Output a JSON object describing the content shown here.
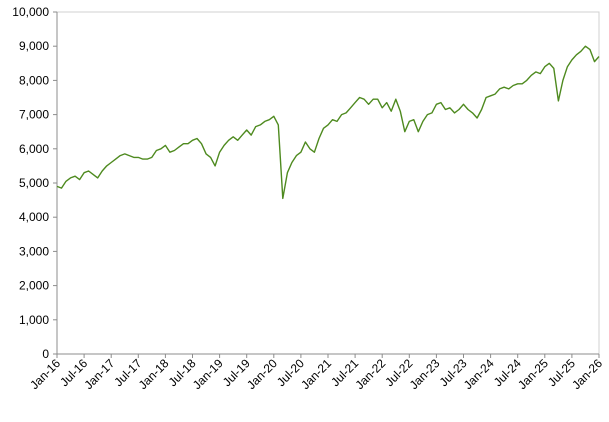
{
  "chart_data": {
    "type": "line",
    "title": "",
    "xlabel": "",
    "ylabel": "",
    "ylim": [
      0,
      10000
    ],
    "yticks": [
      0,
      1000,
      2000,
      3000,
      4000,
      5000,
      6000,
      7000,
      8000,
      9000,
      10000
    ],
    "ytick_labels": [
      "0",
      "1,000",
      "2,000",
      "3,000",
      "4,000",
      "5,000",
      "6,000",
      "7,000",
      "8,000",
      "9,000",
      "10,000"
    ],
    "xlim": [
      "2016-01",
      "2026-01"
    ],
    "xticks": [
      "2016-01",
      "2016-07",
      "2017-01",
      "2017-07",
      "2018-01",
      "2018-07",
      "2019-01",
      "2019-07",
      "2020-01",
      "2020-07",
      "2021-01",
      "2021-07",
      "2022-01",
      "2022-07",
      "2023-01",
      "2023-07",
      "2024-01",
      "2024-07",
      "2025-01",
      "2025-07",
      "2026-01"
    ],
    "xtick_labels": [
      "Jan-16",
      "Jul-16",
      "Jan-17",
      "Jul-17",
      "Jan-18",
      "Jul-18",
      "Jan-19",
      "Jul-19",
      "Jan-20",
      "Jul-20",
      "Jan-21",
      "Jul-21",
      "Jan-22",
      "Jul-22",
      "Jan-23",
      "Jul-23",
      "Jan-24",
      "Jul-24",
      "Jan-25",
      "Jul-25",
      "Jan-26"
    ],
    "grid": false,
    "line_color": "#4e8a1f",
    "series": [
      {
        "x": [
          "2016-01",
          "2016-02",
          "2016-03",
          "2016-04",
          "2016-05",
          "2016-06",
          "2016-07",
          "2016-08",
          "2016-09",
          "2016-10",
          "2016-11",
          "2016-12",
          "2017-01",
          "2017-02",
          "2017-03",
          "2017-04",
          "2017-05",
          "2017-06",
          "2017-07",
          "2017-08",
          "2017-09",
          "2017-10",
          "2017-11",
          "2017-12",
          "2018-01",
          "2018-02",
          "2018-03",
          "2018-04",
          "2018-05",
          "2018-06",
          "2018-07",
          "2018-08",
          "2018-09",
          "2018-10",
          "2018-11",
          "2018-12",
          "2019-01",
          "2019-02",
          "2019-03",
          "2019-04",
          "2019-05",
          "2019-06",
          "2019-07",
          "2019-08",
          "2019-09",
          "2019-10",
          "2019-11",
          "2019-12",
          "2020-01",
          "2020-02",
          "2020-03",
          "2020-04",
          "2020-05",
          "2020-06",
          "2020-07",
          "2020-08",
          "2020-09",
          "2020-10",
          "2020-11",
          "2020-12",
          "2021-01",
          "2021-02",
          "2021-03",
          "2021-04",
          "2021-05",
          "2021-06",
          "2021-07",
          "2021-08",
          "2021-09",
          "2021-10",
          "2021-11",
          "2021-12",
          "2022-01",
          "2022-02",
          "2022-03",
          "2022-04",
          "2022-05",
          "2022-06",
          "2022-07",
          "2022-08",
          "2022-09",
          "2022-10",
          "2022-11",
          "2022-12",
          "2023-01",
          "2023-02",
          "2023-03",
          "2023-04",
          "2023-05",
          "2023-06",
          "2023-07",
          "2023-08",
          "2023-09",
          "2023-10",
          "2023-11",
          "2023-12",
          "2024-01",
          "2024-02",
          "2024-03",
          "2024-04",
          "2024-05",
          "2024-06",
          "2024-07",
          "2024-08",
          "2024-09",
          "2024-10",
          "2024-11",
          "2024-12",
          "2025-01",
          "2025-02",
          "2025-03",
          "2025-04",
          "2025-05",
          "2025-06",
          "2025-07",
          "2025-08",
          "2025-09",
          "2025-10",
          "2025-11",
          "2025-12",
          "2026-01"
        ],
        "y": [
          4900,
          4850,
          5050,
          5150,
          5200,
          5100,
          5300,
          5350,
          5250,
          5150,
          5350,
          5500,
          5600,
          5700,
          5800,
          5850,
          5800,
          5750,
          5750,
          5700,
          5700,
          5750,
          5950,
          6000,
          6100,
          5900,
          5950,
          6050,
          6150,
          6150,
          6250,
          6300,
          6150,
          5850,
          5750,
          5500,
          5900,
          6100,
          6250,
          6350,
          6250,
          6400,
          6550,
          6400,
          6650,
          6700,
          6800,
          6850,
          6950,
          6700,
          4550,
          5300,
          5600,
          5800,
          5900,
          6200,
          6000,
          5900,
          6300,
          6600,
          6700,
          6850,
          6800,
          7000,
          7050,
          7200,
          7350,
          7500,
          7450,
          7300,
          7450,
          7450,
          7200,
          7350,
          7100,
          7450,
          7100,
          6500,
          6800,
          6850,
          6500,
          6800,
          7000,
          7050,
          7300,
          7350,
          7150,
          7200,
          7050,
          7150,
          7300,
          7150,
          7050,
          6900,
          7150,
          7500,
          7550,
          7600,
          7750,
          7800,
          7750,
          7850,
          7900,
          7900,
          8000,
          8150,
          8250,
          8200,
          8400,
          8500,
          8350,
          7400,
          8000,
          8400,
          8600,
          8750,
          8850,
          9000,
          8900,
          8550,
          8700
        ]
      }
    ]
  }
}
